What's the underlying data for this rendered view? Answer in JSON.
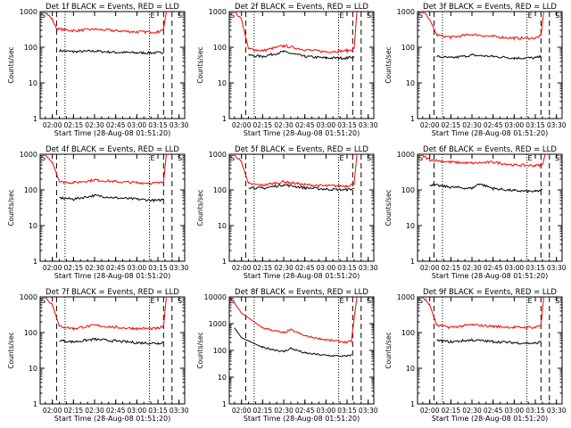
{
  "figure": {
    "shared": {
      "ylabel": "Counts/sec",
      "xlabel": "Start Time (28-Aug-08 01:51:20)",
      "x_ticks": [
        "02:00",
        "02:15",
        "02:30",
        "02:45",
        "03:00",
        "03:15",
        "03:30"
      ],
      "y_ticks": [
        "1",
        "10",
        "100",
        "1000"
      ],
      "y_scale": "log",
      "colors": {
        "events": "#000000",
        "lld": "#ff0000",
        "markers": "#000000"
      },
      "marker_labels": {
        "start": "S",
        "end": "E"
      }
    }
  },
  "chart_data": [
    {
      "panel": "Det 1f",
      "title": "Det 1f BLACK = Events, RED = LLD",
      "type": "line",
      "ylim": [
        1,
        1000
      ],
      "x_range": [
        "01:51:20",
        "03:34:00"
      ],
      "series": [
        {
          "name": "Events",
          "color": "black",
          "x": [
            "02:00",
            "02:05",
            "02:15",
            "02:30",
            "02:45",
            "03:00",
            "03:15",
            "03:19"
          ],
          "values": [
            null,
            80,
            75,
            78,
            72,
            70,
            70,
            72
          ]
        },
        {
          "name": "LLD",
          "color": "red",
          "x": [
            "01:55",
            "02:00",
            "02:03",
            "02:15",
            "02:30",
            "02:45",
            "03:00",
            "03:15",
            "03:19",
            "03:21"
          ],
          "values": [
            1000,
            600,
            330,
            290,
            320,
            290,
            270,
            270,
            330,
            1000
          ]
        }
      ],
      "markers": {
        "dashed": [
          "02:03",
          "03:19"
        ],
        "dotted": [
          "02:09",
          "03:09"
        ],
        "end_dashed": [
          "03:25"
        ]
      }
    },
    {
      "panel": "Det 2f",
      "title": "Det 2f BLACK = Events, RED = LLD",
      "type": "line",
      "ylim": [
        1,
        1000
      ],
      "series": [
        {
          "name": "Events",
          "color": "black",
          "x": [
            "02:05",
            "02:15",
            "02:30",
            "02:45",
            "03:00",
            "03:15",
            "03:20"
          ],
          "values": [
            60,
            55,
            75,
            55,
            50,
            50,
            55
          ]
        },
        {
          "name": "LLD",
          "color": "red",
          "x": [
            "01:55",
            "02:00",
            "02:05",
            "02:15",
            "02:30",
            "02:45",
            "03:00",
            "03:15",
            "03:20",
            "03:22"
          ],
          "values": [
            1000,
            600,
            90,
            80,
            110,
            85,
            75,
            80,
            90,
            1000
          ]
        }
      ]
    },
    {
      "panel": "Det 3f",
      "title": "Det 3f BLACK = Events, RED = LLD",
      "type": "line",
      "ylim": [
        1,
        1000
      ],
      "series": [
        {
          "name": "Events",
          "color": "black",
          "x": [
            "02:05",
            "02:15",
            "02:30",
            "02:45",
            "03:00",
            "03:15",
            "03:19"
          ],
          "values": [
            55,
            50,
            60,
            55,
            50,
            50,
            55
          ]
        },
        {
          "name": "LLD",
          "color": "red",
          "x": [
            "01:55",
            "02:00",
            "02:05",
            "02:15",
            "02:30",
            "02:45",
            "03:00",
            "03:15",
            "03:19",
            "03:21"
          ],
          "values": [
            1000,
            600,
            220,
            190,
            230,
            200,
            180,
            180,
            210,
            1000
          ]
        }
      ]
    },
    {
      "panel": "Det 4f",
      "title": "Det 4f BLACK = Events, RED = LLD",
      "type": "line",
      "ylim": [
        1,
        1000
      ],
      "series": [
        {
          "name": "Events",
          "color": "black",
          "x": [
            "02:05",
            "02:15",
            "02:30",
            "02:45",
            "03:00",
            "03:15",
            "03:19"
          ],
          "values": [
            60,
            55,
            70,
            60,
            55,
            50,
            55
          ]
        },
        {
          "name": "LLD",
          "color": "red",
          "x": [
            "01:55",
            "02:00",
            "02:05",
            "02:15",
            "02:30",
            "02:45",
            "03:00",
            "03:15",
            "03:19",
            "03:21"
          ],
          "values": [
            1000,
            600,
            170,
            160,
            190,
            170,
            160,
            155,
            170,
            1000
          ]
        }
      ]
    },
    {
      "panel": "Det 5f",
      "title": "Det 5f BLACK = Events, RED = LLD",
      "type": "line",
      "ylim": [
        1,
        1000
      ],
      "series": [
        {
          "name": "Events",
          "color": "black",
          "x": [
            "02:05",
            "02:15",
            "02:30",
            "02:45",
            "03:00",
            "03:15",
            "03:20"
          ],
          "values": [
            120,
            110,
            140,
            115,
            105,
            100,
            110
          ]
        },
        {
          "name": "LLD",
          "color": "red",
          "x": [
            "01:55",
            "02:00",
            "02:05",
            "02:15",
            "02:30",
            "02:45",
            "03:00",
            "03:15",
            "03:20",
            "03:22"
          ],
          "values": [
            1000,
            600,
            150,
            135,
            170,
            140,
            130,
            130,
            150,
            1000
          ]
        }
      ]
    },
    {
      "panel": "Det 6f",
      "title": "Det 6f BLACK = Events, RED = LLD",
      "type": "line",
      "ylim": [
        1,
        1000
      ],
      "series": [
        {
          "name": "Events",
          "color": "black",
          "x": [
            "02:00",
            "02:15",
            "02:30",
            "02:35",
            "02:45",
            "03:00",
            "03:15",
            "03:20"
          ],
          "values": [
            140,
            120,
            110,
            150,
            110,
            95,
            90,
            100
          ]
        },
        {
          "name": "LLD",
          "color": "red",
          "x": [
            "01:55",
            "02:00",
            "02:15",
            "02:30",
            "02:45",
            "03:00",
            "03:15",
            "03:20",
            "03:22"
          ],
          "values": [
            900,
            700,
            600,
            560,
            600,
            500,
            480,
            500,
            1000
          ]
        }
      ]
    },
    {
      "panel": "Det 7f",
      "title": "Det 7f BLACK = Events, RED = LLD",
      "type": "line",
      "ylim": [
        1,
        1000
      ],
      "series": [
        {
          "name": "Events",
          "color": "black",
          "x": [
            "02:05",
            "02:15",
            "02:30",
            "02:45",
            "03:00",
            "03:15",
            "03:19"
          ],
          "values": [
            60,
            55,
            65,
            58,
            52,
            50,
            55
          ]
        },
        {
          "name": "LLD",
          "color": "red",
          "x": [
            "01:55",
            "02:00",
            "02:05",
            "02:15",
            "02:30",
            "02:45",
            "03:00",
            "03:15",
            "03:19",
            "03:21"
          ],
          "values": [
            1000,
            600,
            150,
            130,
            160,
            140,
            130,
            130,
            150,
            1000
          ]
        }
      ]
    },
    {
      "panel": "Det 8f",
      "title": "Det 8f BLACK = Events, RED = LLD",
      "type": "line",
      "ylim": [
        1,
        10000
      ],
      "series": [
        {
          "name": "Events",
          "color": "black",
          "x": [
            "01:55",
            "02:00",
            "02:15",
            "02:30",
            "02:35",
            "02:45",
            "03:00",
            "03:15",
            "03:18"
          ],
          "values": [
            700,
            300,
            130,
            90,
            120,
            80,
            65,
            60,
            70
          ]
        },
        {
          "name": "LLD",
          "color": "red",
          "x": [
            "01:52",
            "02:00",
            "02:15",
            "02:30",
            "02:35",
            "02:45",
            "03:00",
            "03:15",
            "03:18",
            "03:22"
          ],
          "values": [
            10000,
            2500,
            700,
            450,
            600,
            350,
            250,
            200,
            220,
            10000
          ]
        }
      ]
    },
    {
      "panel": "Det 9f",
      "title": "Det 9f BLACK = Events, RED = LLD",
      "type": "line",
      "ylim": [
        1,
        1000
      ],
      "series": [
        {
          "name": "Events",
          "color": "black",
          "x": [
            "02:05",
            "02:15",
            "02:30",
            "02:45",
            "03:00",
            "03:15",
            "03:19"
          ],
          "values": [
            60,
            55,
            62,
            56,
            52,
            50,
            55
          ]
        },
        {
          "name": "LLD",
          "color": "red",
          "x": [
            "01:55",
            "02:00",
            "02:05",
            "02:15",
            "02:30",
            "02:45",
            "03:00",
            "03:15",
            "03:19",
            "03:21"
          ],
          "values": [
            1000,
            600,
            160,
            140,
            165,
            150,
            140,
            140,
            160,
            1000
          ]
        }
      ]
    }
  ]
}
